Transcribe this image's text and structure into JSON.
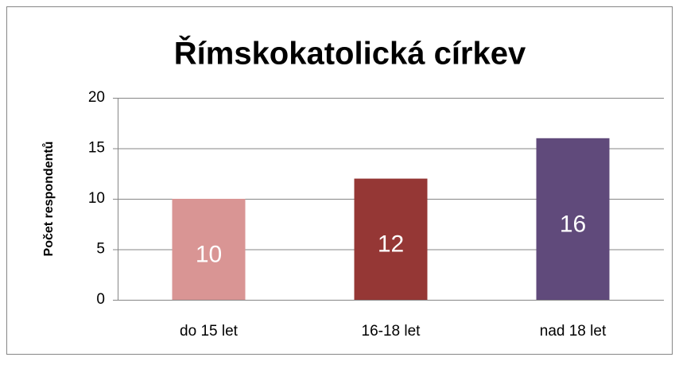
{
  "chart_data": {
    "type": "bar",
    "title": "Římskokatolická církev",
    "y_label": "Počet respondentů",
    "categories": [
      "do 15 let",
      "16-18 let",
      "nad 18 let"
    ],
    "values": [
      10,
      12,
      16
    ],
    "colors": [
      "#d99594",
      "#953735",
      "#604a7b"
    ],
    "ylim": [
      0,
      20
    ],
    "yticks": [
      0,
      5,
      10,
      15,
      20
    ],
    "grid": true
  }
}
